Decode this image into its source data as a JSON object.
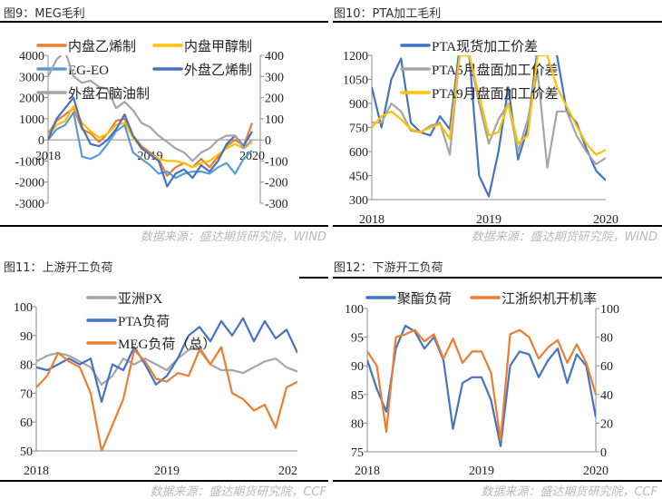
{
  "colors": {
    "blue": "#4472C4",
    "orange": "#ED7D31",
    "gray": "#A5A5A5",
    "yellow": "#FFC000",
    "lightblue": "#5B9BD5",
    "axis": "#8c8c8c"
  },
  "panels": [
    {
      "title": "图9：MEG毛利",
      "source": "数据来源：盛达期货研究院，WIND"
    },
    {
      "title": "图10：PTA加工毛利",
      "source": "数据来源：盛达期货研究院，WIND"
    },
    {
      "title": "图11：上游开工负荷",
      "source": "数据来源：盛达期货研究院，CCF"
    },
    {
      "title": "图12：下游开工负荷",
      "source": "数据来源：盛达期货研究院，CCF"
    }
  ],
  "chart_data": [
    {
      "type": "line",
      "title": "图9：MEG毛利",
      "x_dates": [
        "2018-01",
        "2018-02",
        "2018-03",
        "2018-04",
        "2018-05",
        "2018-06",
        "2018-07",
        "2018-08",
        "2018-09",
        "2018-10",
        "2018-11",
        "2018-12",
        "2019-01",
        "2019-02",
        "2019-03",
        "2019-04",
        "2019-05",
        "2019-06",
        "2019-07",
        "2019-08",
        "2019-09",
        "2019-10",
        "2019-11",
        "2019-12",
        "2020-01"
      ],
      "x_ticks": [
        "2018",
        "2019",
        "2020"
      ],
      "ylim_left": [
        -3000,
        4000
      ],
      "yticks_left": [
        "4000",
        "3000",
        "2000",
        "1000",
        "0",
        "-1000",
        "-2000",
        "-3000"
      ],
      "ylim_right": [
        -300,
        400
      ],
      "yticks_right": [
        "400",
        "300",
        "200",
        "100",
        "0",
        "-100",
        "-200",
        "-300"
      ],
      "legend": "top",
      "series": [
        {
          "name": "内盘乙烯制",
          "color": "#ED7D31",
          "axis": "left",
          "values": [
            300,
            900,
            1200,
            1500,
            500,
            300,
            -100,
            300,
            900,
            1000,
            200,
            -300,
            -600,
            -900,
            -1700,
            -1300,
            -1100,
            -1300,
            -900,
            -1300,
            -800,
            -300,
            0,
            -300,
            800
          ]
        },
        {
          "name": "内盘甲醇制",
          "color": "#FFC000",
          "axis": "left",
          "values": [
            200,
            700,
            900,
            1600,
            800,
            400,
            100,
            300,
            700,
            800,
            100,
            -400,
            -700,
            -900,
            -1000,
            -1000,
            -1100,
            -1300,
            -1100,
            -1000,
            -700,
            -400,
            -200,
            -400,
            -100
          ]
        },
        {
          "name": "EG-EO",
          "color": "#5B9BD5",
          "axis": "left",
          "values": [
            0,
            500,
            700,
            1300,
            -800,
            -900,
            -700,
            -200,
            400,
            700,
            -600,
            -900,
            -1200,
            -1600,
            -1500,
            -1800,
            -1600,
            -1500,
            -1500,
            -1600,
            -1300,
            -1100,
            -1600,
            -900,
            -500
          ]
        },
        {
          "name": "外盘乙烯制",
          "color": "#4472C4",
          "axis": "right",
          "values": [
            0,
            100,
            150,
            200,
            60,
            -20,
            -30,
            0,
            50,
            120,
            20,
            -40,
            -70,
            -100,
            -220,
            -160,
            -140,
            -180,
            -120,
            -150,
            -100,
            -20,
            20,
            -30,
            40
          ]
        },
        {
          "name": "外盘石脑油制",
          "color": "#A5A5A5",
          "axis": "right",
          "values": [
            300,
            380,
            420,
            300,
            270,
            280,
            250,
            240,
            150,
            180,
            140,
            80,
            60,
            20,
            -10,
            -40,
            -60,
            -100,
            -60,
            -40,
            0,
            20,
            20,
            -40,
            0
          ]
        }
      ]
    },
    {
      "type": "line",
      "title": "图10：PTA加工毛利",
      "x_dates": [
        "2018-01",
        "2018-02",
        "2018-03",
        "2018-04",
        "2018-05",
        "2018-06",
        "2018-07",
        "2018-08",
        "2018-09",
        "2018-10",
        "2018-11",
        "2018-12",
        "2019-01",
        "2019-02",
        "2019-03",
        "2019-04",
        "2019-05",
        "2019-06",
        "2019-07",
        "2019-08",
        "2019-09",
        "2019-10",
        "2019-11",
        "2019-12",
        "2020-01"
      ],
      "x_ticks": [
        "2018",
        "2019",
        "2020"
      ],
      "ylim_left": [
        300,
        1200
      ],
      "yticks_left": [
        "1200",
        "1050",
        "900",
        "750",
        "600",
        "450",
        "300"
      ],
      "legend": "top",
      "series": [
        {
          "name": "PTA现货加工价差",
          "color": "#4472C4",
          "axis": "left",
          "values": [
            1000,
            750,
            1050,
            1180,
            780,
            720,
            700,
            820,
            740,
            1250,
            1200,
            450,
            320,
            600,
            1000,
            550,
            750,
            1250,
            1250,
            1200,
            850,
            780,
            620,
            480,
            420
          ]
        },
        {
          "name": "PTA5月盘面加工价差",
          "color": "#A5A5A5",
          "axis": "left",
          "values": [
            780,
            780,
            900,
            850,
            730,
            720,
            760,
            780,
            580,
            1200,
            1200,
            900,
            650,
            800,
            900,
            600,
            800,
            1100,
            500,
            850,
            850,
            700,
            600,
            520,
            560
          ]
        },
        {
          "name": "PTA9月盘面加工价差",
          "color": "#FFC000",
          "axis": "left",
          "values": [
            750,
            820,
            850,
            800,
            740,
            720,
            750,
            770,
            680,
            1200,
            1200,
            950,
            700,
            720,
            900,
            650,
            700,
            1200,
            1200,
            1000,
            880,
            760,
            650,
            580,
            610
          ]
        }
      ]
    },
    {
      "type": "line",
      "title": "图11：上游开工负荷",
      "x_dates": [
        "2018-01",
        "2018-02",
        "2018-03",
        "2018-04",
        "2018-05",
        "2018-06",
        "2018-07",
        "2018-08",
        "2018-09",
        "2018-10",
        "2018-11",
        "2018-12",
        "2019-01",
        "2019-02",
        "2019-03",
        "2019-04",
        "2019-05",
        "2019-06",
        "2019-07",
        "2019-08",
        "2019-09",
        "2019-10",
        "2019-11",
        "2019-12",
        "2020-01"
      ],
      "x_ticks": [
        "2018",
        "2019",
        "202"
      ],
      "ylim_left": [
        50,
        100
      ],
      "yticks_left": [
        "100",
        "90",
        "80",
        "70",
        "60",
        "50"
      ],
      "legend": "top",
      "series": [
        {
          "name": "亚洲PX",
          "color": "#A5A5A5",
          "axis": "left",
          "values": [
            81,
            83,
            84,
            83,
            81,
            79,
            73,
            76,
            82,
            80,
            82,
            80,
            78,
            82,
            85,
            86,
            80,
            78,
            78,
            77,
            79,
            81,
            82,
            79,
            77.5
          ]
        },
        {
          "name": "PTA负荷",
          "color": "#4472C4",
          "axis": "left",
          "values": [
            79,
            78,
            80,
            82,
            80,
            82,
            67,
            80,
            78,
            86,
            80,
            73,
            76,
            82,
            90,
            93,
            88,
            95,
            90,
            96,
            88,
            95,
            89,
            92,
            84
          ]
        },
        {
          "name": "MEG负荷（总）",
          "color": "#ED7D31",
          "axis": "left",
          "values": [
            72,
            76,
            84,
            81,
            79,
            70,
            50,
            59,
            68,
            85,
            81,
            75,
            74,
            77,
            76,
            85,
            80,
            86,
            70,
            68,
            64,
            66,
            58,
            72,
            74
          ]
        }
      ]
    },
    {
      "type": "line",
      "title": "图12：下游开工负荷",
      "x_dates": [
        "2018-01",
        "2018-02",
        "2018-03",
        "2018-04",
        "2018-05",
        "2018-06",
        "2018-07",
        "2018-08",
        "2018-09",
        "2018-10",
        "2018-11",
        "2018-12",
        "2019-01",
        "2019-02",
        "2019-03",
        "2019-04",
        "2019-05",
        "2019-06",
        "2019-07",
        "2019-08",
        "2019-09",
        "2019-10",
        "2019-11",
        "2019-12",
        "2020-01"
      ],
      "x_ticks": [
        "2018",
        "2019",
        "2020"
      ],
      "ylim_left": [
        75,
        100
      ],
      "yticks_left": [
        "100",
        "95",
        "90",
        "85",
        "80",
        "75"
      ],
      "ylim_right": [
        0,
        100
      ],
      "yticks_right": [
        "100",
        "80",
        "60",
        "40",
        "20",
        "0"
      ],
      "legend": "top",
      "series": [
        {
          "name": "聚酯负荷",
          "color": "#4472C4",
          "axis": "left",
          "values": [
            91,
            86,
            82,
            93,
            97,
            96,
            93,
            95,
            91,
            79,
            87,
            88,
            88,
            84,
            76,
            90,
            92.5,
            92,
            88,
            91,
            93,
            87,
            92,
            90,
            81
          ]
        },
        {
          "name": "江浙织机开机率",
          "color": "#ED7D31",
          "axis": "right",
          "values": [
            70,
            60,
            14,
            80,
            82,
            85,
            77,
            82,
            65,
            79,
            62,
            70,
            70,
            55,
            8,
            82,
            85,
            80,
            65,
            73,
            78,
            62,
            75,
            62,
            40
          ]
        }
      ]
    }
  ]
}
